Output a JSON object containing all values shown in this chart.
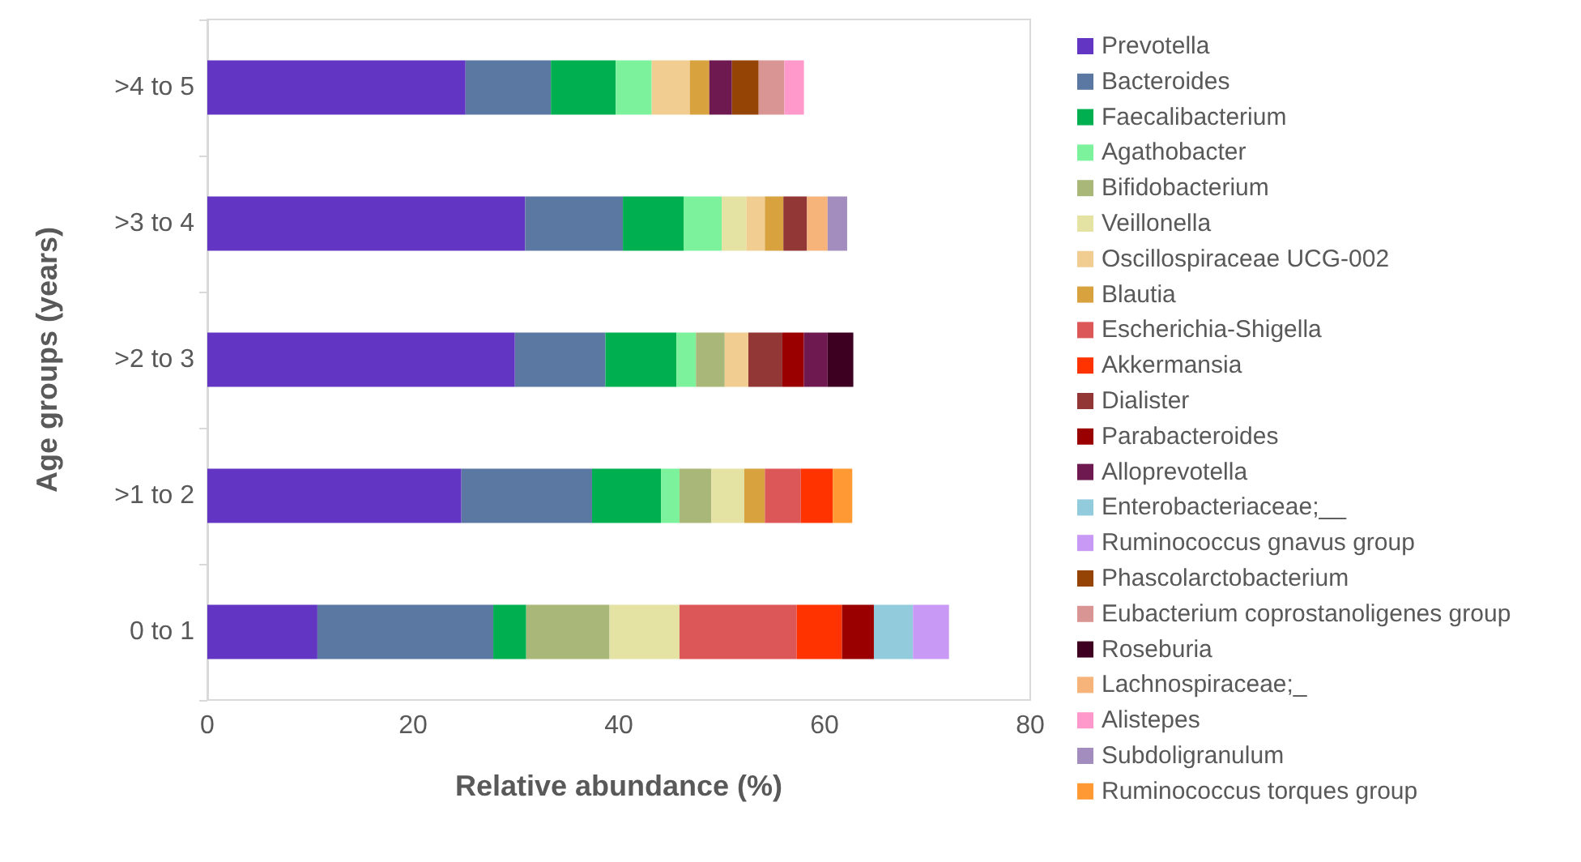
{
  "chart_data": {
    "type": "bar",
    "orientation": "horizontal",
    "stacked": true,
    "xlabel": "Relative abundance (%)",
    "ylabel": "Age groups (years)",
    "categories": [
      ">4 to 5",
      ">3 to 4",
      ">2 to 3",
      ">1 to 2",
      "0 to 1"
    ],
    "xlim": [
      0,
      80
    ],
    "xticks": [
      0,
      20,
      40,
      60,
      80
    ],
    "grid": false,
    "legend": "right",
    "series": [
      {
        "name": "Prevotella",
        "color": "#6236c3",
        "values": [
          25.1,
          30.9,
          29.9,
          24.7,
          10.7
        ]
      },
      {
        "name": "Bacteroides",
        "color": "#5b78a3",
        "values": [
          8.3,
          9.5,
          8.8,
          12.7,
          17.1
        ]
      },
      {
        "name": "Faecalibacterium",
        "color": "#00b050",
        "values": [
          6.3,
          5.9,
          6.9,
          6.7,
          3.2
        ]
      },
      {
        "name": "Agathobacter",
        "color": "#7df29c",
        "values": [
          3.5,
          3.7,
          1.9,
          1.8,
          null
        ]
      },
      {
        "name": "Bifidobacterium",
        "color": "#a9b878",
        "values": [
          null,
          null,
          2.8,
          3.1,
          8.1
        ]
      },
      {
        "name": "Veillonella",
        "color": "#e4e3a3",
        "values": [
          null,
          2.4,
          null,
          3.2,
          6.8
        ]
      },
      {
        "name": "Oscillospiraceae UCG-002",
        "color": "#f2cd91",
        "values": [
          3.7,
          1.8,
          2.3,
          null,
          null
        ]
      },
      {
        "name": "Blautia",
        "color": "#d8a23e",
        "values": [
          1.9,
          1.8,
          null,
          2.0,
          null
        ]
      },
      {
        "name": "Escherichia-Shigella",
        "color": "#dc5858",
        "values": [
          null,
          null,
          null,
          3.5,
          11.4
        ]
      },
      {
        "name": "Akkermansia",
        "color": "#ff3300",
        "values": [
          null,
          null,
          null,
          3.1,
          4.4
        ]
      },
      {
        "name": "Dialister",
        "color": "#923636",
        "values": [
          null,
          2.3,
          3.3,
          null,
          null
        ]
      },
      {
        "name": "Parabacteroides",
        "color": "#9a0000",
        "values": [
          null,
          null,
          2.1,
          null,
          3.1
        ]
      },
      {
        "name": "Alloprevotella",
        "color": "#6e1a50",
        "values": [
          2.2,
          null,
          2.3,
          null,
          null
        ]
      },
      {
        "name": "Enterobacteriaceae;__",
        "color": "#92cbdc",
        "values": [
          null,
          null,
          null,
          null,
          3.8
        ]
      },
      {
        "name": "Ruminococcus gnavus group",
        "color": "#c899f5",
        "values": [
          null,
          null,
          null,
          null,
          3.5
        ]
      },
      {
        "name": "Phascolarctobacterium",
        "color": "#964405",
        "values": [
          2.6,
          null,
          null,
          null,
          null
        ]
      },
      {
        "name": "Eubacterium coprostanoligenes group",
        "color": "#d99594",
        "values": [
          2.5,
          null,
          null,
          null,
          null
        ]
      },
      {
        "name": "Roseburia",
        "color": "#3d0021",
        "values": [
          null,
          null,
          2.5,
          null,
          null
        ]
      },
      {
        "name": "Lachnospiraceae;_",
        "color": "#f6b47b",
        "values": [
          null,
          2.0,
          null,
          null,
          null
        ]
      },
      {
        "name": "Alistepes",
        "color": "#ff99cc",
        "values": [
          1.9,
          null,
          null,
          null,
          null
        ]
      },
      {
        "name": "Subdoligranulum",
        "color": "#a38dbf",
        "values": [
          null,
          1.9,
          null,
          null,
          null
        ]
      },
      {
        "name": "Ruminococcus torques group",
        "color": "#ff9933",
        "values": [
          null,
          null,
          null,
          1.9,
          null
        ]
      }
    ]
  }
}
